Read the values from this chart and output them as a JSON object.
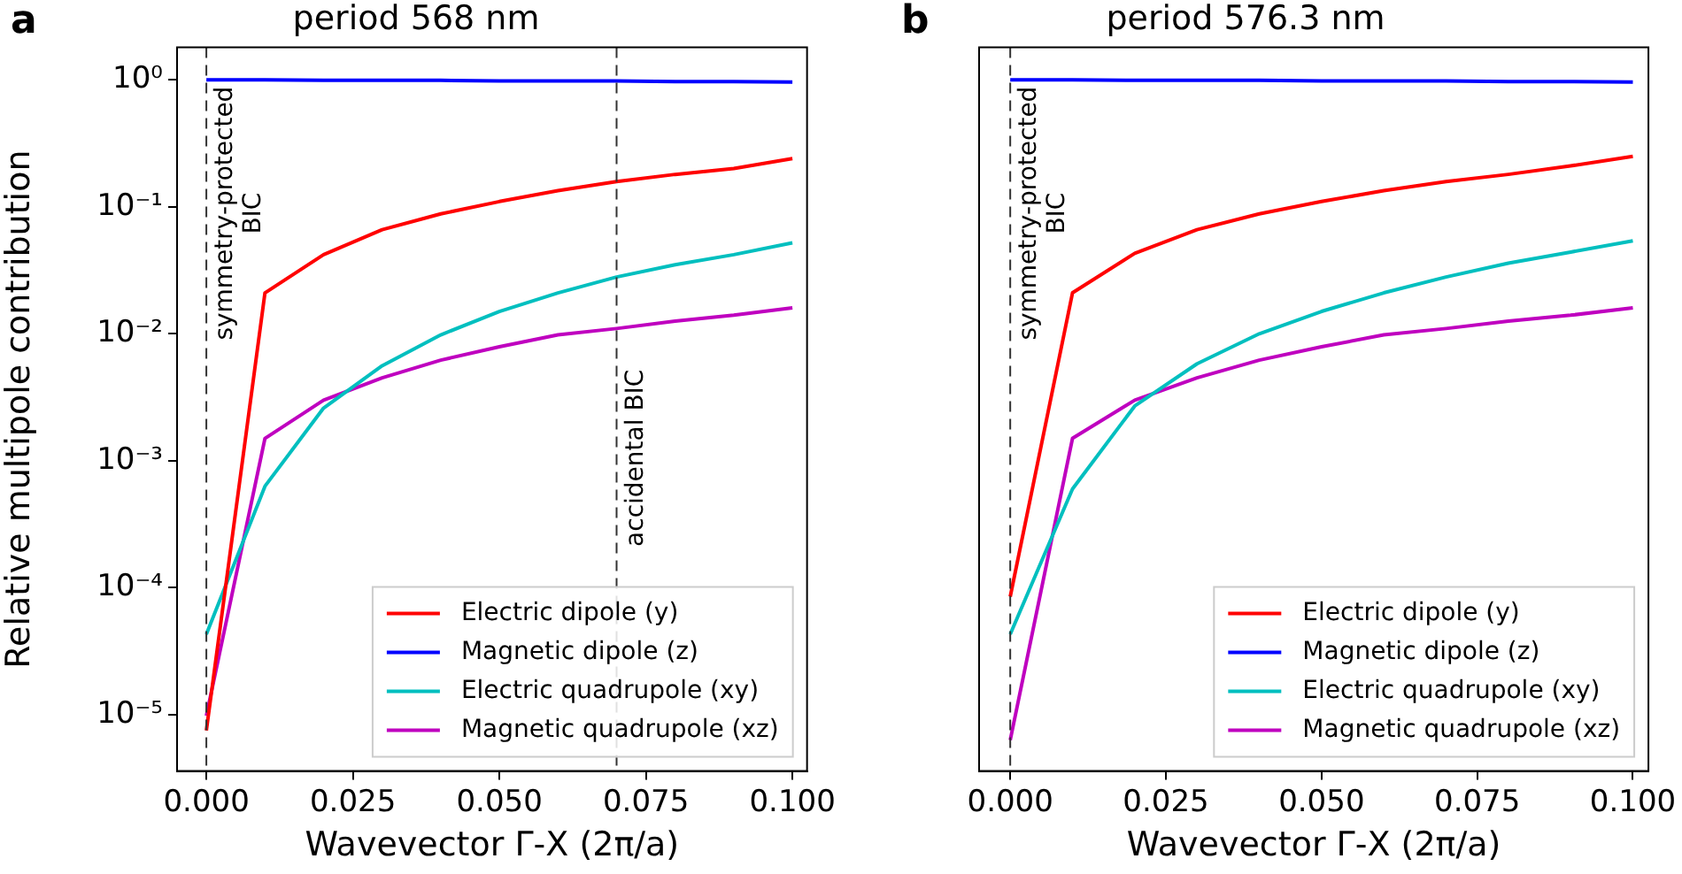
{
  "chart_data": [
    {
      "type": "line",
      "title": "period 568 nm",
      "xlabel": "Wavevector Γ-X (2π/a)",
      "ylabel": "Relative multipole contribution",
      "annotations": [
        "a"
      ],
      "x": [
        0,
        0.01,
        0.02,
        0.03,
        0.04,
        0.05,
        0.06,
        0.07,
        0.08,
        0.09,
        0.1
      ],
      "series": [
        {
          "name": "Electric dipole (y)",
          "color": "#ff0000",
          "values": [
            7.5e-06,
            0.021,
            0.042,
            0.066,
            0.088,
            0.11,
            0.134,
            0.158,
            0.18,
            0.2,
            0.24
          ]
        },
        {
          "name": "Magnetic dipole (z)",
          "color": "#0000ff",
          "values": [
            1.0,
            1.0,
            0.99,
            0.99,
            0.99,
            0.98,
            0.98,
            0.98,
            0.97,
            0.97,
            0.96
          ]
        },
        {
          "name": "Electric quadrupole (xy)",
          "color": "#00bfbf",
          "values": [
            4.3e-05,
            0.00063,
            0.0026,
            0.0056,
            0.0098,
            0.015,
            0.021,
            0.028,
            0.035,
            0.042,
            0.052
          ]
        },
        {
          "name": "Magnetic quadrupole (xz)",
          "color": "#bf00bf",
          "values": [
            9.8e-06,
            0.0015,
            0.003,
            0.0045,
            0.0062,
            0.0079,
            0.0098,
            0.011,
            0.0126,
            0.014,
            0.016
          ]
        }
      ],
      "log": "y",
      "xlim": [
        -0.005,
        0.1025
      ],
      "ylim": [
        3.6e-06,
        1.8
      ],
      "xticks": [
        {
          "value": 0,
          "label": "0.000"
        },
        {
          "value": 0.025,
          "label": "0.025"
        },
        {
          "value": 0.05,
          "label": "0.050"
        },
        {
          "value": 0.075,
          "label": "0.075"
        },
        {
          "value": 0.1,
          "label": "0.100"
        }
      ],
      "yticks": [
        {
          "value": 1e-05,
          "label": "10⁻⁵"
        },
        {
          "value": 0.0001,
          "label": "10⁻⁴"
        },
        {
          "value": 0.001,
          "label": "10⁻³"
        },
        {
          "value": 0.01,
          "label": "10⁻²"
        },
        {
          "value": 0.1,
          "label": "10⁻¹"
        },
        {
          "value": 1,
          "label": "10⁰"
        }
      ],
      "ref_lines": [
        {
          "axis": "x",
          "value": 0,
          "label": "symmetry-protected\nBIC",
          "color": "#333333",
          "line_style": "dashed"
        },
        {
          "axis": "x",
          "value": 0.07,
          "label": "accidental BIC",
          "color": "#333333",
          "line_style": "dashed"
        }
      ],
      "legend": "bottom right",
      "grid": false,
      "marker": "none",
      "line_style": "solid"
    },
    {
      "type": "line",
      "title": "period 576.3 nm",
      "xlabel": "Wavevector Γ-X (2π/a)",
      "annotations": [
        "b"
      ],
      "x": [
        0,
        0.01,
        0.02,
        0.03,
        0.04,
        0.05,
        0.06,
        0.07,
        0.08,
        0.09,
        0.1
      ],
      "series": [
        {
          "name": "Electric dipole (y)",
          "color": "#ff0000",
          "values": [
            8.5e-05,
            0.021,
            0.043,
            0.066,
            0.088,
            0.11,
            0.134,
            0.158,
            0.18,
            0.21,
            0.25
          ]
        },
        {
          "name": "Magnetic dipole (z)",
          "color": "#0000ff",
          "values": [
            1.0,
            1.0,
            0.99,
            0.99,
            0.99,
            0.98,
            0.98,
            0.98,
            0.97,
            0.97,
            0.96
          ]
        },
        {
          "name": "Electric quadrupole (xy)",
          "color": "#00bfbf",
          "values": [
            4.3e-05,
            0.0006,
            0.0027,
            0.0058,
            0.01,
            0.015,
            0.021,
            0.028,
            0.036,
            0.044,
            0.054
          ]
        },
        {
          "name": "Magnetic quadrupole (xz)",
          "color": "#bf00bf",
          "values": [
            6.3e-06,
            0.0015,
            0.003,
            0.0045,
            0.0062,
            0.0079,
            0.0098,
            0.011,
            0.0126,
            0.014,
            0.016
          ]
        }
      ],
      "log": "y",
      "xlim": [
        -0.005,
        0.1025
      ],
      "ylim": [
        3.6e-06,
        1.8
      ],
      "xticks": [
        {
          "value": 0,
          "label": "0.000"
        },
        {
          "value": 0.025,
          "label": "0.025"
        },
        {
          "value": 0.05,
          "label": "0.050"
        },
        {
          "value": 0.075,
          "label": "0.075"
        },
        {
          "value": 0.1,
          "label": "0.100"
        }
      ],
      "yticks": [
        {
          "value": 1e-05,
          "label": null
        },
        {
          "value": 0.0001,
          "label": null
        },
        {
          "value": 0.001,
          "label": null
        },
        {
          "value": 0.01,
          "label": null
        },
        {
          "value": 0.1,
          "label": null
        },
        {
          "value": 1,
          "label": null
        }
      ],
      "ref_lines": [
        {
          "axis": "x",
          "value": 0,
          "label": "symmetry-protected\nBIC",
          "color": "#333333",
          "line_style": "dashed"
        }
      ],
      "tick_labels": "x",
      "legend": "bottom right",
      "grid": false,
      "marker": "none",
      "line_style": "solid"
    }
  ]
}
